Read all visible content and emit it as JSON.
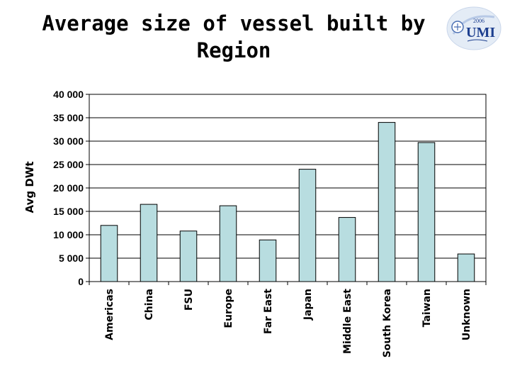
{
  "title": {
    "line1": "Average size of vessel built by",
    "line2": "Region"
  },
  "logo": {
    "icon": "umi-2006-logo-icon",
    "year": "2006",
    "text": "UMI"
  },
  "chart_data": {
    "type": "bar",
    "title": "Average size of vessel built by Region",
    "ylabel": "Avg DWt",
    "xlabel": "",
    "ylim": [
      0,
      40000
    ],
    "yticks": [
      0,
      5000,
      10000,
      15000,
      20000,
      25000,
      30000,
      35000,
      40000
    ],
    "ytick_labels": [
      "0",
      "5 000",
      "10 000",
      "15 000",
      "20 000",
      "25 000",
      "30 000",
      "35 000",
      "40 000"
    ],
    "grid": true,
    "legend": "none",
    "bar_color": "#b8dde0",
    "categories": [
      "Americas",
      "China",
      "FSU",
      "Europe",
      "Far East",
      "Japan",
      "Middle East",
      "South Korea",
      "Taiwan",
      "Unknown"
    ],
    "values": [
      12000,
      16500,
      10800,
      16200,
      8900,
      24000,
      13700,
      34000,
      29700,
      5900
    ]
  }
}
